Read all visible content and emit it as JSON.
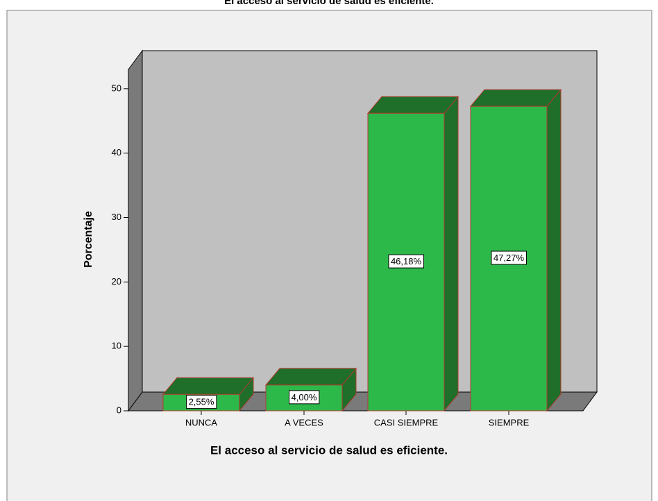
{
  "chart_data": {
    "type": "bar3d",
    "title": "El acceso al servicio de salud es eficiente.",
    "xlabel": "El acceso al servicio de salud es eficiente.",
    "ylabel": "Porcentaje",
    "categories": [
      "NUNCA",
      "A VECES",
      "CASI SIEMPRE",
      "SIEMPRE"
    ],
    "values": [
      2.55,
      4.0,
      46.18,
      47.27
    ],
    "value_labels": [
      "2,55%",
      "4,00%",
      "46,18%",
      "47,27%"
    ],
    "color": "#2db84a",
    "ylim": [
      0,
      53
    ],
    "yticks": [
      0,
      10,
      20,
      30,
      40,
      50
    ]
  }
}
